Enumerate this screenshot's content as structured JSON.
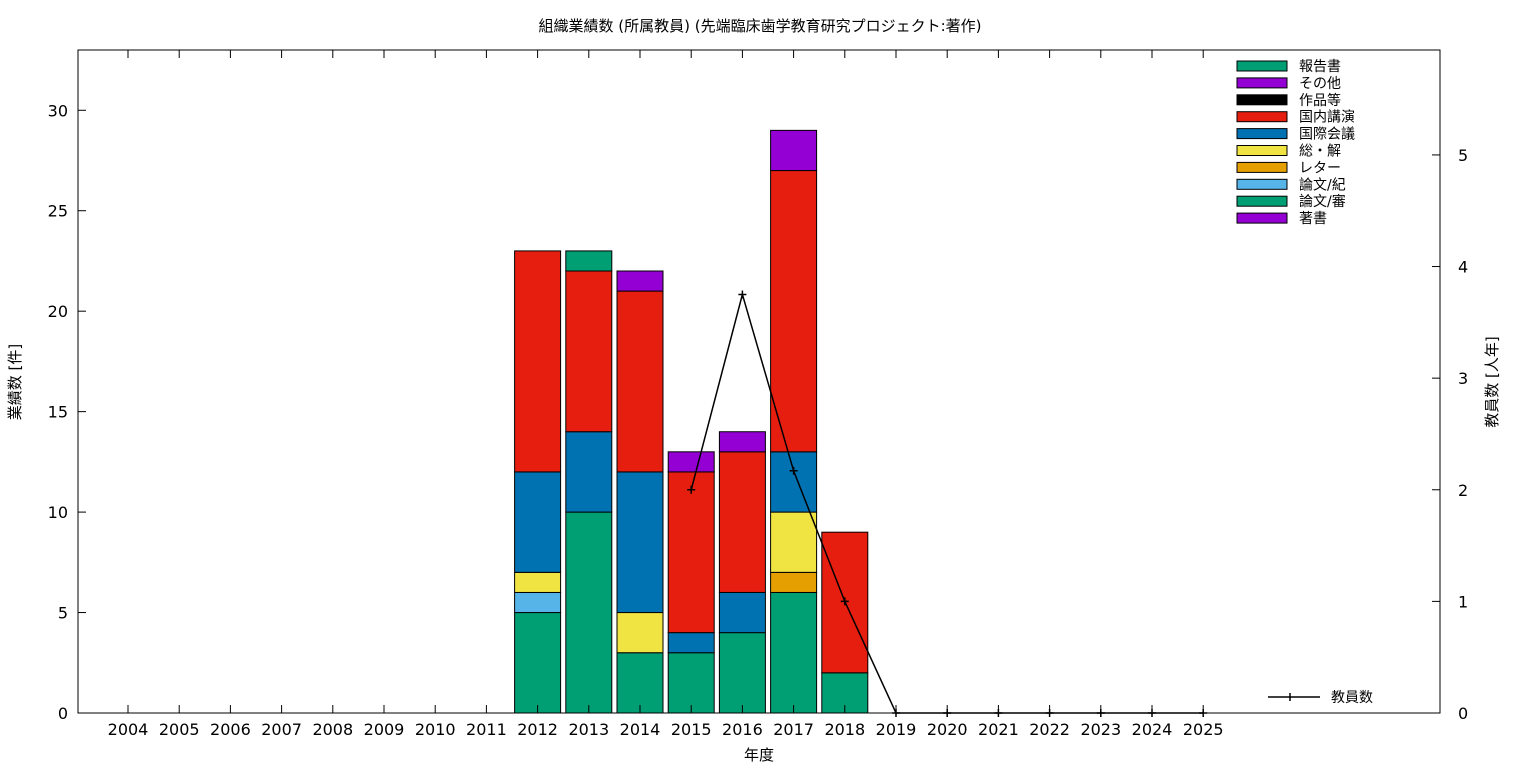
{
  "chart_data": {
    "type": "bar",
    "stacked": true,
    "title": "組織業績数 (所属教員) (先端臨床歯学教育研究プロジェクト:著作)",
    "xlabel": "年度",
    "ylabel": "業績数 [件]",
    "y2label": "教員数 [人年]",
    "ylim": [
      0,
      33
    ],
    "y2lim": [
      0,
      5.94
    ],
    "yticks": [
      0,
      5,
      10,
      15,
      20,
      25,
      30
    ],
    "y2ticks": [
      0,
      1,
      2,
      3,
      4,
      5
    ],
    "grid": false,
    "legend_position": "top-right",
    "categories": [
      "2004",
      "2005",
      "2006",
      "2007",
      "2008",
      "2009",
      "2010",
      "2011",
      "2012",
      "2013",
      "2014",
      "2015",
      "2016",
      "2017",
      "2018",
      "2019",
      "2020",
      "2021",
      "2022",
      "2023",
      "2024",
      "2025"
    ],
    "series": [
      {
        "name": "著書",
        "color": "#9400d3",
        "values": [
          0,
          0,
          0,
          0,
          0,
          0,
          0,
          0,
          0,
          0,
          0,
          0,
          0,
          0,
          0,
          0,
          0,
          0,
          0,
          0,
          0,
          0
        ]
      },
      {
        "name": "論文/審",
        "color": "#009e73",
        "values": [
          0,
          0,
          0,
          0,
          0,
          0,
          0,
          0,
          5,
          10,
          3,
          3,
          4,
          6,
          2,
          0,
          0,
          0,
          0,
          0,
          0,
          0
        ]
      },
      {
        "name": "論文/紀",
        "color": "#56b4e9",
        "values": [
          0,
          0,
          0,
          0,
          0,
          0,
          0,
          0,
          1,
          0,
          0,
          0,
          0,
          0,
          0,
          0,
          0,
          0,
          0,
          0,
          0,
          0
        ]
      },
      {
        "name": "レター",
        "color": "#e69f00",
        "values": [
          0,
          0,
          0,
          0,
          0,
          0,
          0,
          0,
          0,
          0,
          0,
          0,
          0,
          1,
          0,
          0,
          0,
          0,
          0,
          0,
          0,
          0
        ]
      },
      {
        "name": "総・解",
        "color": "#f0e442",
        "values": [
          0,
          0,
          0,
          0,
          0,
          0,
          0,
          0,
          1,
          0,
          2,
          0,
          0,
          3,
          0,
          0,
          0,
          0,
          0,
          0,
          0,
          0
        ]
      },
      {
        "name": "国際会議",
        "color": "#0072b2",
        "values": [
          0,
          0,
          0,
          0,
          0,
          0,
          0,
          0,
          5,
          4,
          7,
          1,
          2,
          3,
          0,
          0,
          0,
          0,
          0,
          0,
          0,
          0
        ]
      },
      {
        "name": "国内講演",
        "color": "#e51e10",
        "values": [
          0,
          0,
          0,
          0,
          0,
          0,
          0,
          0,
          11,
          8,
          9,
          8,
          7,
          14,
          7,
          0,
          0,
          0,
          0,
          0,
          0,
          0
        ]
      },
      {
        "name": "作品等",
        "color": "#000000",
        "values": [
          0,
          0,
          0,
          0,
          0,
          0,
          0,
          0,
          0,
          0,
          0,
          0,
          0,
          0,
          0,
          0,
          0,
          0,
          0,
          0,
          0,
          0
        ]
      },
      {
        "name": "その他",
        "color": "#9400d3",
        "values": [
          0,
          0,
          0,
          0,
          0,
          0,
          0,
          0,
          0,
          0,
          1,
          1,
          1,
          2,
          0,
          0,
          0,
          0,
          0,
          0,
          0,
          0
        ]
      },
      {
        "name": "報告書",
        "color": "#009e73",
        "values": [
          0,
          0,
          0,
          0,
          0,
          0,
          0,
          0,
          0,
          1,
          0,
          0,
          0,
          0,
          0,
          0,
          0,
          0,
          0,
          0,
          0,
          0
        ]
      }
    ],
    "line_series": {
      "name": "教員数",
      "color": "#000000",
      "axis": "right",
      "x": [
        "2015",
        "2016",
        "2017",
        "2018",
        "2019",
        "2020",
        "2021",
        "2022",
        "2023",
        "2024",
        "2025"
      ],
      "values": [
        2,
        3.75,
        2.17,
        1,
        0,
        0,
        0,
        0,
        0,
        0,
        0
      ]
    }
  }
}
